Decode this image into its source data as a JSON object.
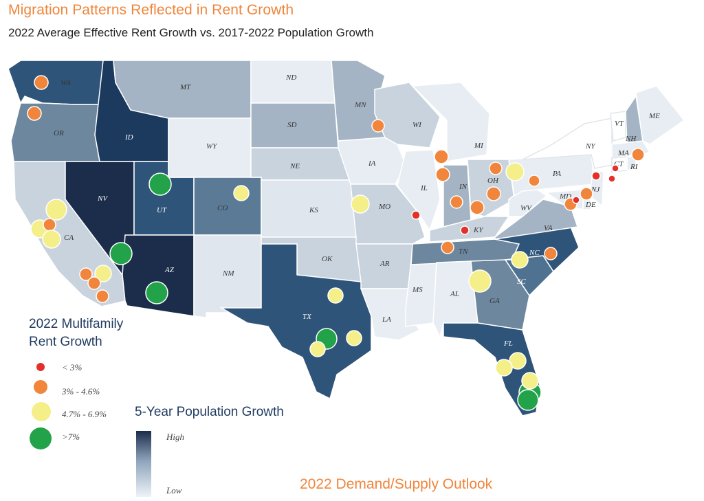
{
  "title": "Migration Patterns Reflected in Rent Growth",
  "subtitle": "2022 Average Effective Rent Growth vs. 2017-2022 Population Growth",
  "rent_legend": {
    "title_line1": "2022 Multifamily",
    "title_line2": "Rent Growth",
    "items": [
      {
        "label": "< 3%",
        "color": "#e2312b"
      },
      {
        "label": "3% - 4.6%",
        "color": "#f0853b"
      },
      {
        "label": "4.7% - 6.9%",
        "color": "#f5ef8a"
      },
      {
        "label": ">7%",
        "color": "#22a34a"
      }
    ]
  },
  "population_legend": {
    "title": "5-Year Population Growth",
    "high_label": "High",
    "low_label": "Low"
  },
  "footer": "2022 Demand/Supply Outlook",
  "colors": {
    "very_high": "#1b2d4b",
    "high": "#2f5479",
    "mid_high": "#4f7291",
    "mid": "#6d879f",
    "mid_low": "#a5b4c4",
    "low": "#c8d3de",
    "very_low": "#e7edf3",
    "title": "#f0853b"
  },
  "state_labels": [
    "WA",
    "OR",
    "CA",
    "ID",
    "NV",
    "UT",
    "AZ",
    "MT",
    "WY",
    "CO",
    "NM",
    "ND",
    "SD",
    "NE",
    "KS",
    "OK",
    "TX",
    "MN",
    "IA",
    "MO",
    "AR",
    "LA",
    "WI",
    "IL",
    "MS",
    "MI",
    "IN",
    "KY",
    "TN",
    "AL",
    "GA",
    "FL",
    "OH",
    "WV",
    "VA",
    "NC",
    "SC",
    "PA",
    "NY",
    "VT",
    "NH",
    "ME",
    "MA",
    "CT",
    "RI",
    "NJ",
    "DE",
    "MD"
  ]
}
